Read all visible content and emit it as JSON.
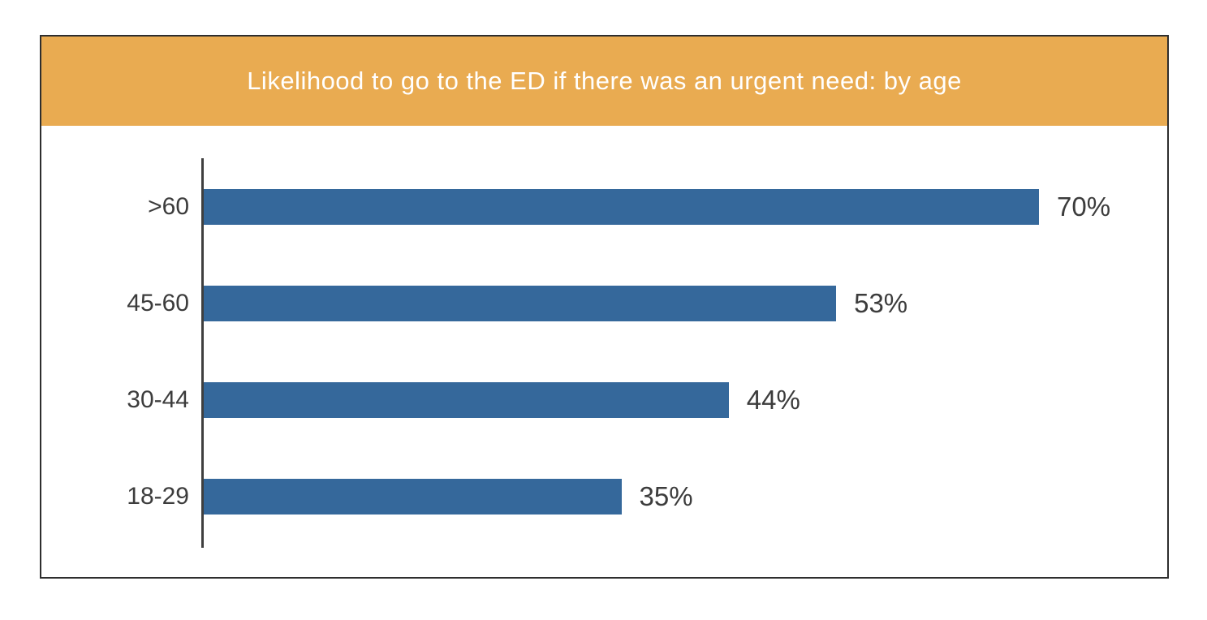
{
  "chart_data": {
    "type": "bar",
    "orientation": "horizontal",
    "title": "Likelihood to go to the ED if there was an urgent need: by age",
    "categories": [
      ">60",
      "45-60",
      "30-44",
      "18-29"
    ],
    "values": [
      70,
      53,
      44,
      35
    ],
    "value_labels": [
      "70%",
      "53%",
      "44%",
      "35%"
    ],
    "xlim": [
      0,
      81
    ],
    "grid": false,
    "legend": "none",
    "value_label_position": "end-of-bar"
  },
  "colors": {
    "header_band": "#E9AB51",
    "bar": "#35689B",
    "frame_border": "#2e2e2e",
    "axis_line": "#3f3f3f",
    "label_text": "#3c3c3c",
    "title_text": "#ffffff",
    "background": "#ffffff"
  }
}
